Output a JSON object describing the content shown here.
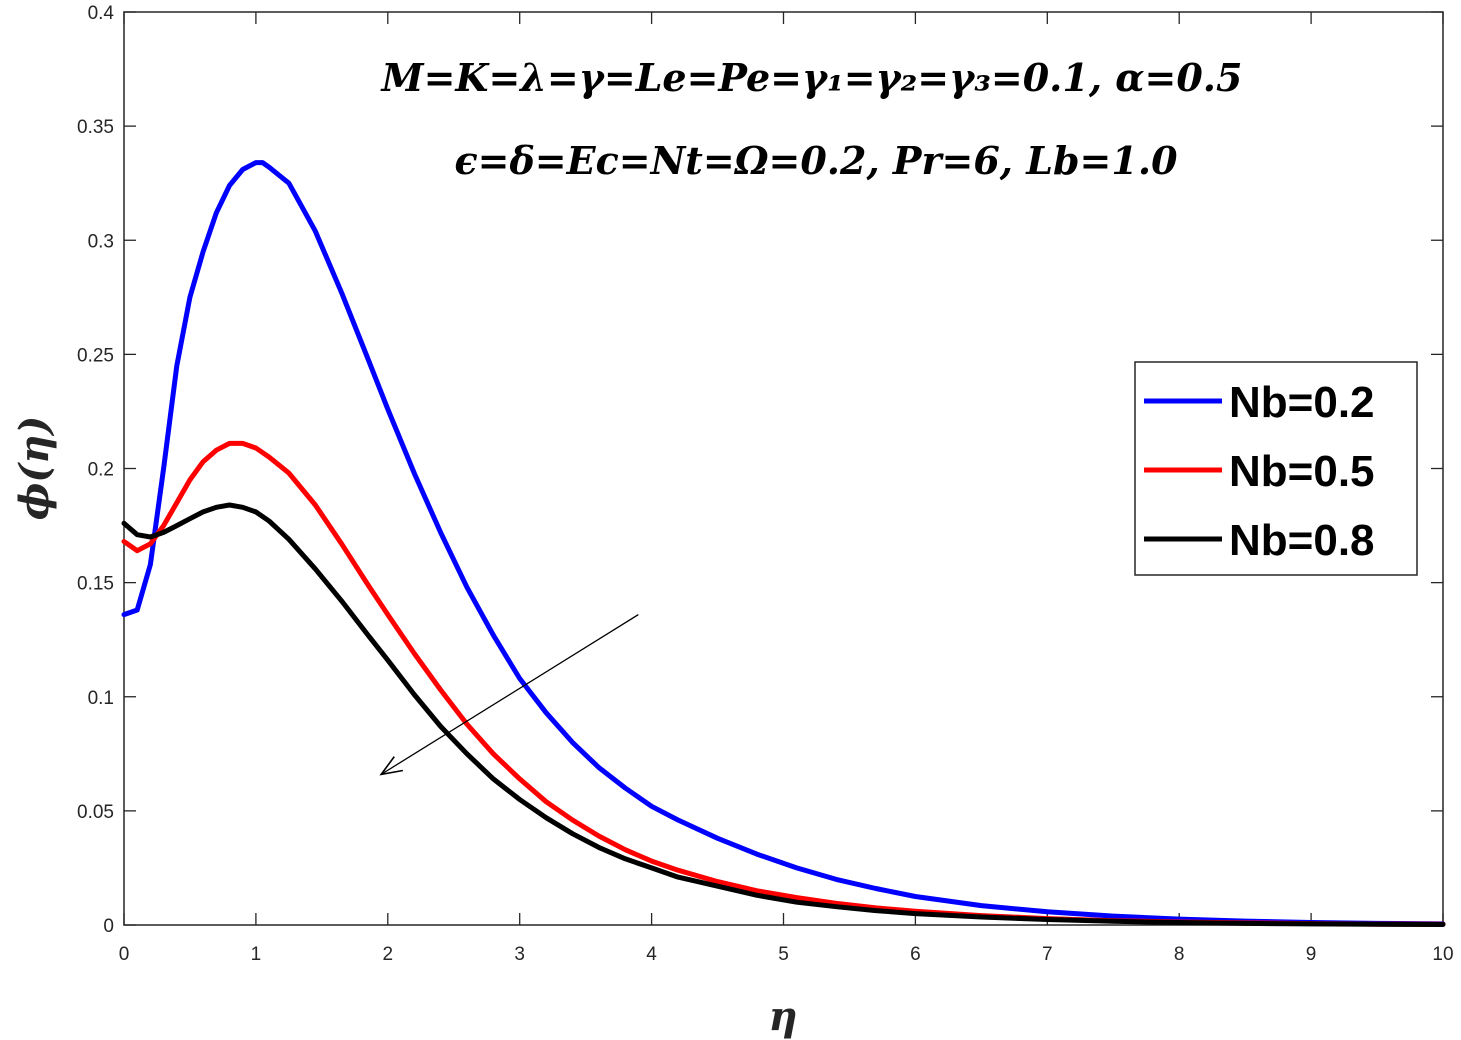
{
  "chart_data": {
    "type": "line",
    "title": "",
    "xlabel": "η",
    "ylabel": "ϕ(η)",
    "xlim": [
      0,
      10
    ],
    "ylim": [
      0,
      0.4
    ],
    "xticks": [
      0,
      1,
      2,
      3,
      4,
      5,
      6,
      7,
      8,
      9,
      10
    ],
    "yticks": [
      0,
      0.05,
      0.1,
      0.15,
      0.2,
      0.25,
      0.3,
      0.35,
      0.4
    ],
    "xtick_labels": [
      "0",
      "1",
      "2",
      "3",
      "4",
      "5",
      "6",
      "7",
      "8",
      "9",
      "10"
    ],
    "ytick_labels": [
      "0",
      "0.05",
      "0.1",
      "0.15",
      "0.2",
      "0.25",
      "0.3",
      "0.35",
      "0.4"
    ],
    "grid": false,
    "annotation_line1": "M=K=λ=γ=Le=Pe=γ₁=γ₂=γ₃=0.1, α=0.5",
    "annotation_line2": "ϵ=δ=Ec=Nt=Ω=0.2, Pr=6, Lb=1.0",
    "arrow": {
      "from": [
        3.9,
        0.136
      ],
      "to": [
        1.95,
        0.066
      ],
      "meaning": "increasing Nb"
    },
    "legend_position": "right",
    "series": [
      {
        "name": "Nb=0.2",
        "color": "#0000ff",
        "x": [
          0,
          0.1,
          0.2,
          0.3,
          0.4,
          0.5,
          0.6,
          0.7,
          0.8,
          0.9,
          1.0,
          1.05,
          1.1,
          1.25,
          1.45,
          1.65,
          1.85,
          2.0,
          2.2,
          2.4,
          2.6,
          2.8,
          3.0,
          3.2,
          3.4,
          3.6,
          3.8,
          4.0,
          4.2,
          4.5,
          4.8,
          5.1,
          5.4,
          5.7,
          6.0,
          6.5,
          7.0,
          7.5,
          8.0,
          8.5,
          9.0,
          9.5,
          10.0
        ],
        "values": [
          0.136,
          0.138,
          0.158,
          0.2,
          0.245,
          0.275,
          0.295,
          0.312,
          0.324,
          0.331,
          0.334,
          0.334,
          0.332,
          0.325,
          0.304,
          0.277,
          0.248,
          0.226,
          0.198,
          0.172,
          0.148,
          0.127,
          0.108,
          0.093,
          0.08,
          0.069,
          0.06,
          0.052,
          0.046,
          0.038,
          0.031,
          0.025,
          0.02,
          0.016,
          0.0125,
          0.0085,
          0.0058,
          0.0039,
          0.0026,
          0.0017,
          0.0011,
          0.0007,
          0.0005
        ]
      },
      {
        "name": "Nb=0.5",
        "color": "#ff0000",
        "x": [
          0,
          0.1,
          0.2,
          0.3,
          0.4,
          0.5,
          0.6,
          0.7,
          0.8,
          0.9,
          1.0,
          1.1,
          1.25,
          1.45,
          1.65,
          1.85,
          2.0,
          2.2,
          2.4,
          2.6,
          2.8,
          3.0,
          3.2,
          3.4,
          3.6,
          3.8,
          4.0,
          4.2,
          4.5,
          4.8,
          5.1,
          5.4,
          5.7,
          6.0,
          6.5,
          7.0,
          7.5,
          8.0,
          8.5,
          9.0,
          9.5,
          10.0
        ],
        "values": [
          0.168,
          0.164,
          0.167,
          0.175,
          0.185,
          0.195,
          0.203,
          0.208,
          0.211,
          0.211,
          0.209,
          0.205,
          0.198,
          0.184,
          0.167,
          0.149,
          0.136,
          0.119,
          0.103,
          0.088,
          0.075,
          0.064,
          0.054,
          0.046,
          0.039,
          0.033,
          0.028,
          0.024,
          0.019,
          0.015,
          0.012,
          0.0095,
          0.0075,
          0.006,
          0.0041,
          0.0028,
          0.0019,
          0.0013,
          0.0009,
          0.0006,
          0.0004,
          0.0003
        ]
      },
      {
        "name": "Nb=0.8",
        "color": "#000000",
        "x": [
          0,
          0.1,
          0.2,
          0.3,
          0.4,
          0.5,
          0.6,
          0.7,
          0.8,
          0.9,
          1.0,
          1.1,
          1.25,
          1.45,
          1.65,
          1.85,
          2.0,
          2.2,
          2.4,
          2.6,
          2.8,
          3.0,
          3.2,
          3.4,
          3.6,
          3.8,
          4.0,
          4.2,
          4.5,
          4.8,
          5.1,
          5.4,
          5.7,
          6.0,
          6.5,
          7.0,
          7.5,
          8.0,
          8.5,
          9.0,
          9.5,
          10.0
        ],
        "values": [
          0.176,
          0.171,
          0.17,
          0.172,
          0.175,
          0.178,
          0.181,
          0.183,
          0.184,
          0.183,
          0.181,
          0.177,
          0.169,
          0.156,
          0.142,
          0.127,
          0.116,
          0.101,
          0.087,
          0.075,
          0.064,
          0.055,
          0.047,
          0.04,
          0.034,
          0.029,
          0.025,
          0.021,
          0.017,
          0.013,
          0.01,
          0.008,
          0.0063,
          0.005,
          0.0035,
          0.0024,
          0.0016,
          0.0011,
          0.0007,
          0.0005,
          0.0003,
          0.0002
        ]
      }
    ]
  }
}
